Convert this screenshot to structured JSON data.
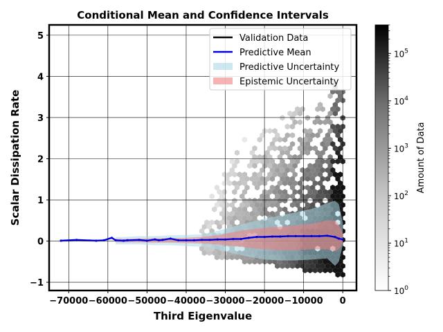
{
  "chart_data": {
    "type": "line",
    "title": "Conditional Mean and Confidence Intervals",
    "xlabel": "Third Eigenvalue",
    "ylabel": "Scalar Dissipation Rate",
    "xlim": [
      -75000,
      3500
    ],
    "ylim": [
      -1.2,
      5.25
    ],
    "x_ticks": [
      -70000,
      -60000,
      -50000,
      -40000,
      -30000,
      -20000,
      -10000,
      0
    ],
    "x_tick_labels": [
      "−70000",
      "−60000",
      "−50000",
      "−40000",
      "−30000",
      "−20000",
      "−10000",
      "0"
    ],
    "y_ticks": [
      -1,
      0,
      1,
      2,
      3,
      4,
      5
    ],
    "y_tick_labels": [
      "−1",
      "0",
      "1",
      "2",
      "3",
      "4",
      "5"
    ],
    "grid": true,
    "legend_position": "top-right",
    "legend": [
      {
        "label": "Validation Data",
        "kind": "line",
        "color": "#000000"
      },
      {
        "label": "Predictive Mean",
        "kind": "line",
        "color": "#0000dd"
      },
      {
        "label": "Predictive Uncertainty",
        "kind": "patch",
        "color": "#add8e6"
      },
      {
        "label": "Epistemic Uncertainty",
        "kind": "patch",
        "color": "#f08080"
      }
    ],
    "series": [
      {
        "name": "Predictive Mean",
        "color": "#0000dd",
        "x": [
          -72000,
          -68000,
          -63000,
          -61000,
          -59000,
          -58000,
          -56000,
          -55000,
          -52000,
          -50000,
          -48000,
          -47000,
          -46000,
          -44000,
          -42000,
          -40000,
          -38000,
          -36000,
          -34000,
          -32000,
          -30000,
          -28000,
          -26000,
          -24000,
          -22000,
          -20000,
          -18000,
          -16000,
          -14000,
          -12000,
          -10000,
          -8000,
          -6000,
          -4000,
          -2000,
          -1000,
          0
        ],
        "y": [
          0.01,
          0.03,
          0.01,
          0.02,
          0.08,
          0.02,
          0.01,
          0.02,
          0.03,
          0.01,
          0.04,
          0.02,
          0.03,
          0.06,
          0.02,
          0.02,
          0.02,
          0.03,
          0.03,
          0.04,
          0.04,
          0.05,
          0.05,
          0.08,
          0.1,
          0.1,
          0.11,
          0.11,
          0.12,
          0.12,
          0.12,
          0.12,
          0.12,
          0.13,
          0.1,
          0.06,
          0.04
        ]
      }
    ],
    "bands": [
      {
        "name": "Predictive Uncertainty",
        "color": "#add8e6",
        "x": [
          -58000,
          -56000,
          -52000,
          -48000,
          -44000,
          -40000,
          -36000,
          -32000,
          -28000,
          -24000,
          -20000,
          -16000,
          -12000,
          -8000,
          -4000,
          -2000,
          -1000,
          0
        ],
        "upper": [
          0.1,
          0.1,
          0.12,
          0.12,
          0.14,
          0.15,
          0.16,
          0.25,
          0.35,
          0.45,
          0.55,
          0.62,
          0.7,
          0.78,
          0.92,
          0.98,
          0.9,
          0.45
        ],
        "lower": [
          -0.08,
          -0.08,
          -0.08,
          -0.1,
          -0.1,
          -0.12,
          -0.14,
          -0.2,
          -0.3,
          -0.38,
          -0.45,
          -0.47,
          -0.47,
          -0.45,
          -0.42,
          -0.6,
          -0.5,
          -0.1
        ]
      },
      {
        "name": "Epistemic Uncertainty",
        "color": "#f08080",
        "x": [
          -58000,
          -56000,
          -52000,
          -48000,
          -44000,
          -40000,
          -36000,
          -32000,
          -28000,
          -24000,
          -20000,
          -16000,
          -12000,
          -8000,
          -4000,
          -2000,
          -1000,
          0
        ],
        "upper": [
          0.06,
          0.05,
          0.06,
          0.07,
          0.07,
          0.08,
          0.1,
          0.14,
          0.22,
          0.28,
          0.32,
          0.35,
          0.38,
          0.42,
          0.5,
          0.5,
          0.4,
          0.2
        ],
        "lower": [
          -0.03,
          -0.03,
          -0.03,
          -0.04,
          -0.04,
          -0.05,
          -0.06,
          -0.08,
          -0.12,
          -0.16,
          -0.2,
          -0.22,
          -0.22,
          -0.2,
          -0.2,
          -0.25,
          -0.2,
          -0.05
        ]
      }
    ],
    "colorbar": {
      "label": "Amount of Data",
      "scale": "log",
      "range": [
        1,
        400000
      ],
      "tick_labels": [
        {
          "base": "10",
          "exp": "0"
        },
        {
          "base": "10",
          "exp": "1"
        },
        {
          "base": "10",
          "exp": "2"
        },
        {
          "base": "10",
          "exp": "3"
        },
        {
          "base": "10",
          "exp": "4"
        },
        {
          "base": "10",
          "exp": "5"
        }
      ]
    }
  }
}
